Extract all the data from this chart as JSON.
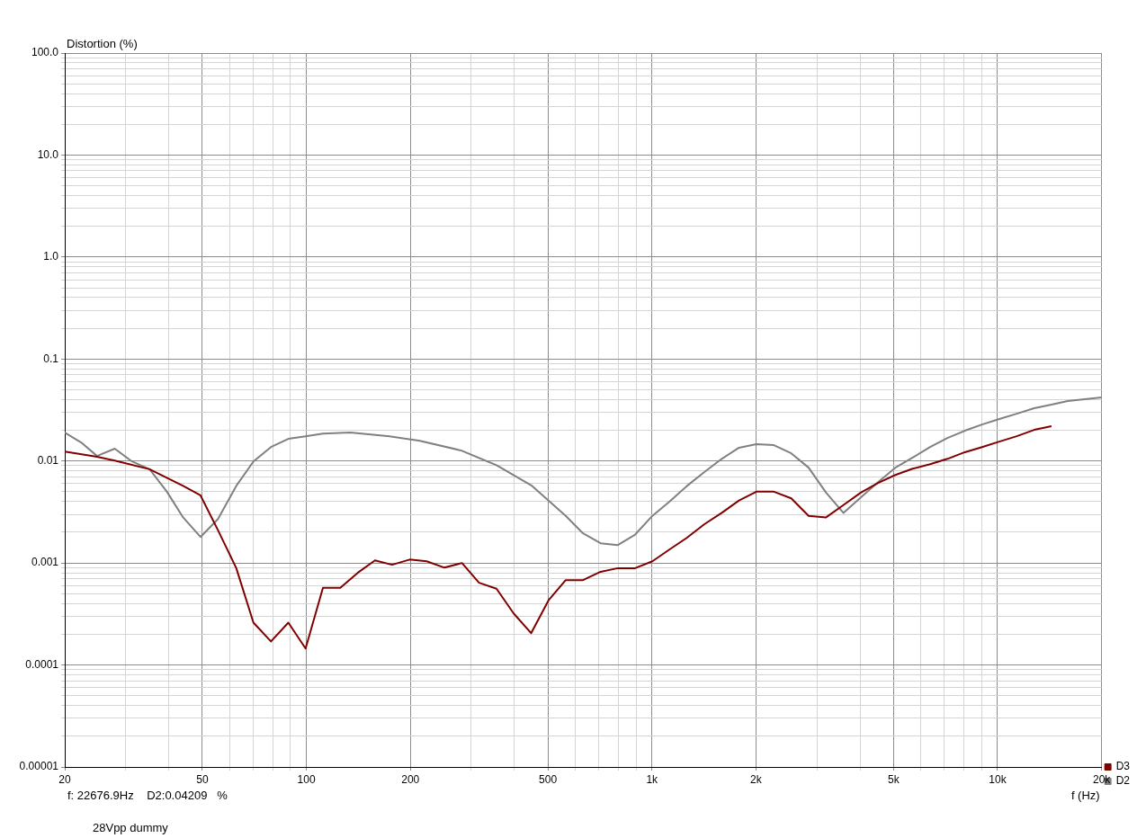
{
  "chart_data": {
    "type": "line",
    "xlabel": "f (Hz)",
    "ylabel": "Distortion (%)",
    "log": "xy",
    "grid": true,
    "legend": "bottom right",
    "marker": "none",
    "line_style": "solid",
    "xlim": [
      20,
      20000
    ],
    "xticks": [
      20,
      {
        "value": 30,
        "label": null
      },
      {
        "value": 40,
        "label": null
      },
      50,
      {
        "value": 60,
        "label": null
      },
      {
        "value": 70,
        "label": null
      },
      {
        "value": 80,
        "label": null
      },
      {
        "value": 90,
        "label": null
      },
      100,
      200,
      {
        "value": 300,
        "label": null
      },
      {
        "value": 400,
        "label": null
      },
      500,
      {
        "value": 600,
        "label": null
      },
      {
        "value": 700,
        "label": null
      },
      {
        "value": 800,
        "label": null
      },
      {
        "value": 900,
        "label": null
      },
      {
        "value": 1000,
        "label": "1k"
      },
      {
        "value": 2000,
        "label": "2k"
      },
      {
        "value": 3000,
        "label": null
      },
      {
        "value": 4000,
        "label": null
      },
      {
        "value": 5000,
        "label": "5k"
      },
      {
        "value": 6000,
        "label": null
      },
      {
        "value": 7000,
        "label": null
      },
      {
        "value": 8000,
        "label": null
      },
      {
        "value": 9000,
        "label": null
      },
      {
        "value": 10000,
        "label": "10k"
      },
      {
        "value": 20000,
        "label": "20k"
      }
    ],
    "ylim": [
      1e-05,
      100
    ],
    "yticks": [
      {
        "value": 1e-05,
        "label": "0.00001"
      },
      {
        "value": 2e-05,
        "label": null
      },
      {
        "value": 3e-05,
        "label": null
      },
      {
        "value": 4e-05,
        "label": null
      },
      {
        "value": 5e-05,
        "label": null
      },
      {
        "value": 6e-05,
        "label": null
      },
      {
        "value": 7e-05,
        "label": null
      },
      {
        "value": 8e-05,
        "label": null
      },
      {
        "value": 9e-05,
        "label": null
      },
      {
        "value": 0.0001,
        "label": "0.0001"
      },
      {
        "value": 0.0002,
        "label": null
      },
      {
        "value": 0.0003,
        "label": null
      },
      {
        "value": 0.0004,
        "label": null
      },
      {
        "value": 0.0005,
        "label": null
      },
      {
        "value": 0.0006,
        "label": null
      },
      {
        "value": 0.0007,
        "label": null
      },
      {
        "value": 0.0008,
        "label": null
      },
      {
        "value": 0.0009,
        "label": null
      },
      {
        "value": 0.001,
        "label": "0.001"
      },
      {
        "value": 0.002,
        "label": null
      },
      {
        "value": 0.003,
        "label": null
      },
      {
        "value": 0.004,
        "label": null
      },
      {
        "value": 0.005,
        "label": null
      },
      {
        "value": 0.006,
        "label": null
      },
      {
        "value": 0.007,
        "label": null
      },
      {
        "value": 0.008,
        "label": null
      },
      {
        "value": 0.009,
        "label": null
      },
      {
        "value": 0.01,
        "label": "0.01"
      },
      {
        "value": 0.02,
        "label": null
      },
      {
        "value": 0.03,
        "label": null
      },
      {
        "value": 0.04,
        "label": null
      },
      {
        "value": 0.05,
        "label": null
      },
      {
        "value": 0.06,
        "label": null
      },
      {
        "value": 0.07,
        "label": null
      },
      {
        "value": 0.08,
        "label": null
      },
      {
        "value": 0.09,
        "label": null
      },
      {
        "value": 0.1,
        "label": "0.1"
      },
      {
        "value": 0.2,
        "label": null
      },
      {
        "value": 0.3,
        "label": null
      },
      {
        "value": 0.4,
        "label": null
      },
      {
        "value": 0.5,
        "label": null
      },
      {
        "value": 0.6,
        "label": null
      },
      {
        "value": 0.7,
        "label": null
      },
      {
        "value": 0.8,
        "label": null
      },
      {
        "value": 0.9,
        "label": null
      },
      {
        "value": 1,
        "label": "1.0"
      },
      {
        "value": 2,
        "label": null
      },
      {
        "value": 3,
        "label": null
      },
      {
        "value": 4,
        "label": null
      },
      {
        "value": 5,
        "label": null
      },
      {
        "value": 6,
        "label": null
      },
      {
        "value": 7,
        "label": null
      },
      {
        "value": 8,
        "label": null
      },
      {
        "value": 9,
        "label": null
      },
      {
        "value": 10,
        "label": "10.0"
      },
      {
        "value": 20,
        "label": null
      },
      {
        "value": 30,
        "label": null
      },
      {
        "value": 40,
        "label": null
      },
      {
        "value": 50,
        "label": null
      },
      {
        "value": 60,
        "label": null
      },
      {
        "value": 70,
        "label": null
      },
      {
        "value": 80,
        "label": null
      },
      {
        "value": 90,
        "label": null
      },
      {
        "value": 100,
        "label": "100.0"
      }
    ],
    "series": [
      {
        "name": "D3",
        "color": "#800000",
        "x": [
          20,
          24.8,
          27.9,
          35.2,
          44,
          49.4,
          55.5,
          62.7,
          70.3,
          79,
          88.7,
          99.5,
          111.7,
          125.4,
          140.7,
          158,
          177,
          199,
          223,
          251,
          282,
          316,
          355,
          398,
          447,
          502,
          563,
          632,
          710,
          797,
          894,
          1003,
          1125,
          1263,
          1418,
          1592,
          1786,
          2005,
          2253,
          2530,
          2840,
          3190,
          3580,
          4020,
          4510,
          5060,
          5680,
          6380,
          7160,
          8040,
          9020,
          10120,
          11370,
          12760,
          14320
        ],
        "values": [
          0.0124,
          0.011,
          0.0101,
          0.0083,
          0.0057,
          0.0046,
          0.0021,
          0.00089,
          0.00026,
          0.00017,
          0.00026,
          0.000145,
          0.00057,
          0.00057,
          0.0008,
          0.00106,
          0.00096,
          0.00108,
          0.00104,
          0.0009,
          0.001,
          0.00064,
          0.00056,
          0.00032,
          0.000205,
          0.00043,
          0.00068,
          0.00068,
          0.00082,
          0.00089,
          0.00089,
          0.00104,
          0.00136,
          0.00177,
          0.0024,
          0.0031,
          0.0041,
          0.005,
          0.005,
          0.0043,
          0.0029,
          0.0028,
          0.0037,
          0.0049,
          0.0061,
          0.0073,
          0.0084,
          0.0093,
          0.0105,
          0.0122,
          0.0137,
          0.0155,
          0.0175,
          0.0202,
          0.0219
        ]
      },
      {
        "name": "D2",
        "color": "#808080",
        "x": [
          20,
          22.3,
          24.8,
          27.9,
          31.3,
          35.2,
          39.5,
          44,
          49.4,
          55.5,
          62.7,
          70.3,
          79,
          88.7,
          99.5,
          111.7,
          134,
          174,
          213,
          280,
          355,
          450,
          563,
          632,
          710,
          797,
          894,
          1003,
          1125,
          1263,
          1418,
          1592,
          1786,
          2005,
          2253,
          2530,
          2840,
          3190,
          3580,
          4020,
          4510,
          5060,
          5680,
          6380,
          7160,
          8040,
          9020,
          10120,
          11370,
          12760,
          14320,
          15960,
          20000
        ],
        "values": [
          0.019,
          0.0152,
          0.0112,
          0.0132,
          0.0099,
          0.0083,
          0.005,
          0.0028,
          0.0018,
          0.0027,
          0.0057,
          0.0099,
          0.0137,
          0.0165,
          0.0175,
          0.0186,
          0.019,
          0.0175,
          0.0158,
          0.0127,
          0.0091,
          0.0057,
          0.0029,
          0.00195,
          0.00156,
          0.0015,
          0.0019,
          0.0029,
          0.004,
          0.0057,
          0.0078,
          0.0105,
          0.0135,
          0.0146,
          0.0143,
          0.0119,
          0.0086,
          0.0049,
          0.0031,
          0.0044,
          0.0062,
          0.0086,
          0.0108,
          0.0137,
          0.0168,
          0.0198,
          0.0228,
          0.0258,
          0.0291,
          0.0329,
          0.0357,
          0.0387,
          0.042
        ]
      }
    ],
    "annotations": [
      "f: 22676.9Hz    D2:0.04209   %",
      "28Vpp dummy"
    ]
  }
}
